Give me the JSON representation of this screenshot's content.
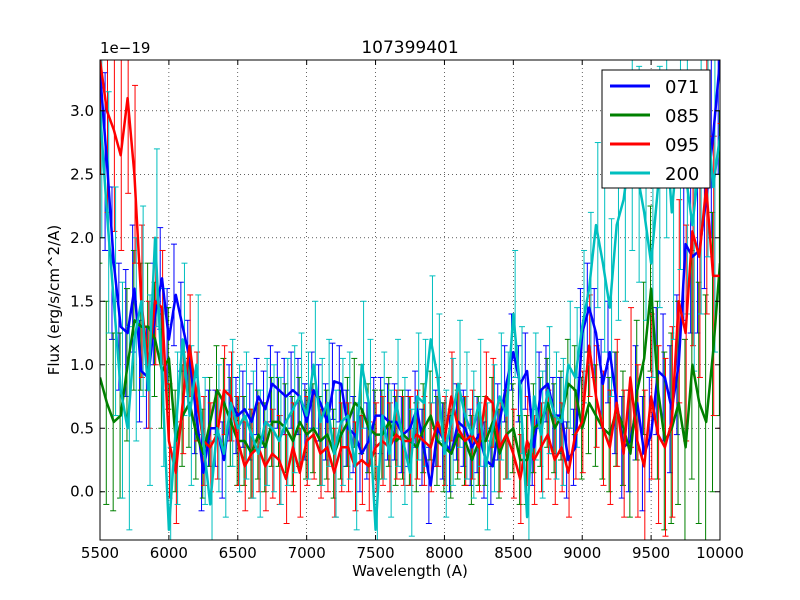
{
  "chart_data": {
    "type": "line",
    "title": "107399401",
    "xlabel": "Wavelength (A)",
    "ylabel": "Flux (erg/s/cm^2/A)",
    "offset_text": "1e−19",
    "xlim": [
      5500,
      10000
    ],
    "ylim": [
      -0.38,
      3.4
    ],
    "xticks": [
      5500,
      6000,
      6500,
      7000,
      7500,
      8000,
      8500,
      9000,
      9500,
      10000
    ],
    "yticks": [
      0.0,
      0.5,
      1.0,
      1.5,
      2.0,
      2.5,
      3.0
    ],
    "ytick_labels": [
      "0.0",
      "0.5",
      "1.0",
      "1.5",
      "2.0",
      "2.5",
      "3.0"
    ],
    "grid": true,
    "legend_position": "top-right",
    "x": [
      5500,
      5550,
      5600,
      5650,
      5700,
      5750,
      5800,
      5850,
      5900,
      5950,
      6000,
      6050,
      6100,
      6150,
      6200,
      6250,
      6300,
      6350,
      6400,
      6450,
      6500,
      6550,
      6600,
      6650,
      6700,
      6750,
      6800,
      6850,
      6900,
      6950,
      7000,
      7050,
      7100,
      7150,
      7200,
      7250,
      7300,
      7350,
      7400,
      7450,
      7500,
      7550,
      7600,
      7650,
      7700,
      7750,
      7800,
      7850,
      7900,
      7950,
      8000,
      8050,
      8100,
      8150,
      8200,
      8250,
      8300,
      8350,
      8400,
      8450,
      8500,
      8550,
      8600,
      8650,
      8700,
      8750,
      8800,
      8850,
      8900,
      8950,
      9000,
      9050,
      9100,
      9150,
      9200,
      9250,
      9300,
      9350,
      9400,
      9450,
      9500,
      9550,
      9600,
      9650,
      9700,
      9750,
      9800,
      9850,
      9900,
      9950,
      10000
    ],
    "series": [
      {
        "name": "071",
        "color": "#0000ff",
        "values": [
          3.3,
          2.6,
          1.8,
          1.3,
          1.25,
          1.6,
          0.95,
          0.9,
          1.4,
          1.68,
          1.2,
          1.55,
          1.3,
          1.05,
          0.6,
          0.15,
          0.5,
          0.5,
          0.25,
          0.7,
          0.6,
          0.65,
          0.55,
          0.75,
          0.65,
          0.85,
          0.8,
          0.75,
          0.8,
          0.75,
          0.55,
          0.8,
          0.7,
          0.55,
          0.87,
          0.85,
          0.5,
          0.45,
          0.3,
          0.4,
          0.6,
          0.6,
          0.55,
          0.55,
          0.45,
          0.5,
          0.65,
          0.35,
          0.05,
          0.5,
          0.4,
          0.3,
          0.55,
          0.5,
          0.35,
          0.45,
          0.25,
          0.2,
          0.55,
          0.85,
          1.1,
          0.85,
          0.95,
          0.35,
          0.8,
          0.85,
          0.6,
          0.6,
          0.25,
          0.35,
          1.25,
          1.45,
          1.25,
          0.85,
          1.1,
          0.7,
          0.35,
          0.4,
          0.7,
          0.3,
          0.45,
          0.95,
          0.9,
          0.65,
          1.0,
          1.95,
          1.85,
          1.9,
          2.3,
          2.8,
          3.4
        ],
        "errors": [
          0.8,
          0.7,
          0.6,
          0.5,
          0.5,
          0.5,
          0.4,
          0.4,
          0.4,
          0.4,
          0.4,
          0.4,
          0.35,
          0.3,
          0.3,
          0.3,
          0.3,
          0.3,
          0.3,
          0.3,
          0.3,
          0.3,
          0.3,
          0.3,
          0.3,
          0.3,
          0.3,
          0.3,
          0.3,
          0.3,
          0.3,
          0.3,
          0.3,
          0.3,
          0.3,
          0.3,
          0.3,
          0.3,
          0.3,
          0.3,
          0.3,
          0.3,
          0.3,
          0.3,
          0.3,
          0.3,
          0.3,
          0.3,
          0.3,
          0.3,
          0.3,
          0.3,
          0.3,
          0.3,
          0.3,
          0.3,
          0.3,
          0.3,
          0.3,
          0.3,
          0.3,
          0.3,
          0.3,
          0.3,
          0.3,
          0.3,
          0.3,
          0.3,
          0.3,
          0.3,
          0.35,
          0.35,
          0.35,
          0.35,
          0.4,
          0.4,
          0.4,
          0.4,
          0.45,
          0.45,
          0.45,
          0.5,
          0.5,
          0.5,
          0.55,
          0.6,
          0.6,
          0.65,
          0.7,
          0.8,
          0.9
        ]
      },
      {
        "name": "085",
        "color": "#008000",
        "values": [
          0.9,
          0.7,
          0.55,
          0.6,
          1.0,
          1.35,
          1.3,
          1.3,
          1.2,
          0.95,
          1.05,
          0.4,
          0.6,
          0.7,
          0.45,
          0.3,
          0.55,
          0.8,
          0.7,
          0.55,
          0.4,
          0.4,
          0.3,
          0.45,
          0.35,
          0.55,
          0.55,
          0.5,
          0.4,
          0.55,
          0.45,
          0.5,
          0.4,
          0.45,
          0.3,
          0.45,
          0.55,
          0.7,
          0.65,
          0.5,
          0.45,
          0.45,
          0.55,
          0.4,
          0.45,
          0.4,
          0.35,
          0.5,
          0.6,
          0.4,
          0.35,
          0.3,
          0.45,
          0.4,
          0.25,
          0.4,
          0.4,
          0.55,
          0.3,
          0.45,
          0.5,
          0.25,
          0.25,
          0.5,
          0.55,
          0.7,
          0.5,
          0.6,
          0.85,
          0.8,
          0.5,
          0.7,
          0.6,
          0.5,
          0.45,
          0.65,
          0.5,
          0.3,
          0.8,
          1.05,
          1.6,
          0.8,
          0.4,
          0.5,
          0.7,
          0.35,
          1.0,
          0.7,
          0.55,
          1.1,
          1.8
        ],
        "errors": [
          0.9,
          0.8,
          0.7,
          0.65,
          0.6,
          0.55,
          0.5,
          0.5,
          0.45,
          0.45,
          0.4,
          0.4,
          0.4,
          0.35,
          0.35,
          0.35,
          0.35,
          0.35,
          0.35,
          0.35,
          0.35,
          0.35,
          0.35,
          0.35,
          0.35,
          0.35,
          0.35,
          0.35,
          0.35,
          0.35,
          0.35,
          0.35,
          0.35,
          0.35,
          0.35,
          0.35,
          0.35,
          0.35,
          0.35,
          0.35,
          0.35,
          0.35,
          0.35,
          0.35,
          0.35,
          0.35,
          0.35,
          0.35,
          0.35,
          0.35,
          0.35,
          0.35,
          0.35,
          0.35,
          0.35,
          0.35,
          0.35,
          0.35,
          0.35,
          0.35,
          0.35,
          0.35,
          0.35,
          0.35,
          0.35,
          0.35,
          0.35,
          0.35,
          0.35,
          0.35,
          0.4,
          0.4,
          0.4,
          0.4,
          0.45,
          0.45,
          0.45,
          0.5,
          0.55,
          0.6,
          0.65,
          0.7,
          0.7,
          0.75,
          0.8,
          0.85,
          0.9,
          0.95,
          1.0,
          1.1,
          1.2
        ]
      },
      {
        "name": "095",
        "color": "#ff0000",
        "values": [
          3.4,
          3.0,
          2.85,
          2.65,
          3.1,
          2.5,
          1.5,
          1.0,
          1.5,
          1.45,
          0.4,
          0.15,
          0.7,
          1.15,
          0.75,
          0.4,
          0.35,
          0.45,
          0.8,
          0.75,
          0.4,
          0.2,
          0.3,
          0.35,
          0.2,
          0.3,
          0.25,
          0.1,
          0.35,
          0.15,
          0.4,
          0.45,
          0.3,
          0.35,
          0.15,
          0.35,
          0.35,
          0.2,
          0.25,
          0.2,
          0.35,
          0.4,
          0.35,
          0.45,
          0.4,
          0.4,
          0.45,
          0.4,
          0.35,
          0.55,
          0.4,
          0.75,
          0.5,
          0.4,
          0.45,
          0.35,
          0.75,
          0.7,
          0.35,
          0.45,
          0.3,
          0.1,
          0.4,
          0.25,
          0.35,
          0.45,
          0.25,
          0.35,
          0.15,
          0.45,
          0.55,
          1.15,
          0.75,
          0.5,
          0.35,
          0.7,
          0.3,
          0.9,
          0.4,
          0.2,
          0.75,
          0.45,
          0.35,
          0.55,
          1.5,
          1.25,
          2.05,
          1.85,
          2.4,
          1.7,
          1.7
        ],
        "errors": [
          0.9,
          0.8,
          0.8,
          0.75,
          0.75,
          0.7,
          0.6,
          0.5,
          0.5,
          0.45,
          0.45,
          0.4,
          0.4,
          0.4,
          0.35,
          0.35,
          0.35,
          0.35,
          0.35,
          0.35,
          0.35,
          0.35,
          0.35,
          0.35,
          0.35,
          0.35,
          0.35,
          0.35,
          0.35,
          0.35,
          0.35,
          0.35,
          0.35,
          0.35,
          0.35,
          0.35,
          0.35,
          0.35,
          0.35,
          0.35,
          0.35,
          0.35,
          0.35,
          0.35,
          0.35,
          0.35,
          0.35,
          0.35,
          0.35,
          0.35,
          0.35,
          0.35,
          0.35,
          0.35,
          0.35,
          0.35,
          0.35,
          0.35,
          0.35,
          0.35,
          0.35,
          0.35,
          0.35,
          0.35,
          0.35,
          0.35,
          0.35,
          0.35,
          0.35,
          0.35,
          0.4,
          0.4,
          0.4,
          0.45,
          0.45,
          0.5,
          0.5,
          0.55,
          0.6,
          0.6,
          0.65,
          0.7,
          0.7,
          0.75,
          0.8,
          0.85,
          0.9,
          0.95,
          1.0,
          1.1,
          1.2
        ]
      },
      {
        "name": "200",
        "color": "#00bfbf",
        "values": [
          3.0,
          2.2,
          1.5,
          0.8,
          0.5,
          1.2,
          1.5,
          0.8,
          2.0,
          0.9,
          -0.3,
          0.5,
          1.2,
          0.6,
          1.0,
          0.4,
          -0.1,
          0.5,
          0.3,
          0.7,
          0.5,
          0.6,
          0.45,
          0.3,
          0.55,
          0.5,
          0.4,
          0.55,
          0.65,
          0.75,
          0.6,
          1.0,
          0.55,
          0.7,
          0.3,
          0.55,
          0.6,
          0.2,
          1.0,
          0.7,
          -0.3,
          0.6,
          0.3,
          0.7,
          0.4,
          0.15,
          0.75,
          0.7,
          1.2,
          0.9,
          0.3,
          0.55,
          0.85,
          0.6,
          0.45,
          0.7,
          0.2,
          0.5,
          0.75,
          0.6,
          1.4,
          0.8,
          -0.2,
          0.75,
          0.45,
          0.8,
          0.6,
          0.55,
          1.0,
          0.9,
          1.3,
          1.6,
          2.1,
          1.8,
          1.45,
          2.1,
          2.3,
          2.7,
          2.5,
          2.2,
          1.8,
          2.4,
          3.0,
          2.2,
          2.8,
          2.5,
          2.1,
          2.6,
          3.1,
          2.4,
          2.8
        ],
        "errors": [
          1.0,
          0.95,
          0.9,
          0.85,
          0.8,
          0.8,
          0.75,
          0.75,
          0.7,
          0.7,
          0.65,
          0.6,
          0.6,
          0.55,
          0.55,
          0.5,
          0.5,
          0.5,
          0.5,
          0.5,
          0.5,
          0.5,
          0.5,
          0.5,
          0.5,
          0.5,
          0.5,
          0.5,
          0.5,
          0.5,
          0.5,
          0.5,
          0.5,
          0.5,
          0.5,
          0.5,
          0.5,
          0.5,
          0.5,
          0.5,
          0.5,
          0.5,
          0.5,
          0.5,
          0.5,
          0.5,
          0.5,
          0.5,
          0.5,
          0.5,
          0.5,
          0.5,
          0.5,
          0.5,
          0.5,
          0.5,
          0.5,
          0.5,
          0.5,
          0.5,
          0.5,
          0.5,
          0.5,
          0.5,
          0.5,
          0.5,
          0.5,
          0.5,
          0.5,
          0.55,
          0.6,
          0.6,
          0.65,
          0.7,
          0.7,
          0.75,
          0.8,
          0.8,
          0.85,
          0.85,
          0.9,
          0.95,
          1.0,
          1.0,
          1.05,
          1.1,
          1.15,
          1.2,
          1.25,
          1.3,
          1.4
        ]
      }
    ]
  }
}
